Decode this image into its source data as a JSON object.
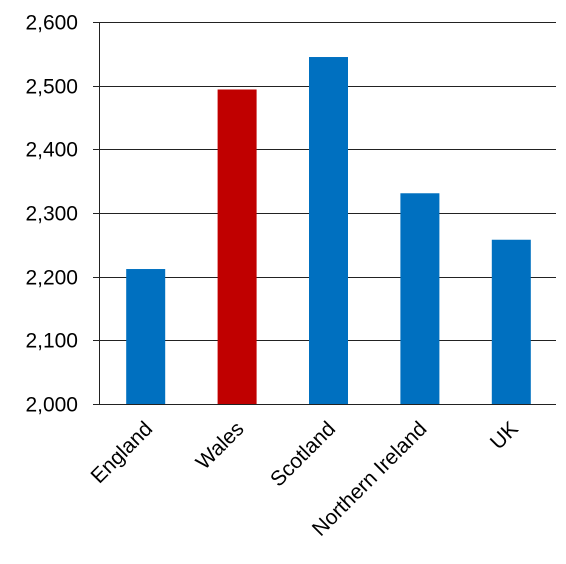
{
  "chart_data": {
    "type": "bar",
    "title": "",
    "xlabel": "",
    "ylabel": "",
    "categories": [
      "England",
      "Wales",
      "Scotland",
      "Northern Ireland",
      "UK"
    ],
    "values": [
      2212,
      2494,
      2545,
      2331,
      2258
    ],
    "bar_colors": [
      "#0070C0",
      "#C00000",
      "#0070C0",
      "#0070C0",
      "#0070C0"
    ],
    "ylim": [
      2000,
      2600
    ],
    "yticks": [
      2000,
      2100,
      2200,
      2300,
      2400,
      2500,
      2600
    ],
    "ytick_labels": [
      "2,000",
      "2,100",
      "2,200",
      "2,300",
      "2,400",
      "2,500",
      "2,600"
    ],
    "grid": true,
    "legend": "none"
  }
}
